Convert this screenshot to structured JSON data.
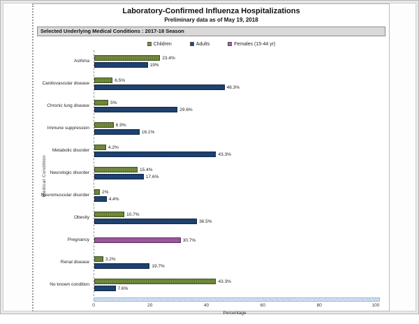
{
  "page": {
    "title": "Laboratory-Confirmed Influenza Hospitalizations",
    "subtitle": "Preliminary data as of May 19, 2018",
    "filter_bar": "Selected Underlying Medical Conditions : 2017-18 Season"
  },
  "colors": {
    "children": "#76923C",
    "adults": "#1F4779",
    "females": "#A75CA8",
    "scrollbar": "#BCCFE8"
  },
  "chart_data": {
    "type": "bar",
    "orientation": "horizontal",
    "title": "Laboratory-Confirmed Influenza Hospitalizations",
    "subtitle": "Preliminary data as of May 19, 2018",
    "xlabel": "Percentage",
    "ylabel": "Medical Condition",
    "xlim": [
      0,
      100
    ],
    "xticks": [
      0,
      20,
      40,
      60,
      80,
      100
    ],
    "grid": false,
    "legend_position": "top",
    "categories": [
      "Asthma",
      "Cardiovascular disease",
      "Chronic lung disease",
      "Immune suppression",
      "Metabolic disorder",
      "Neurologic disorder",
      "Neuromuscular disorder",
      "Obesity",
      "Pregnancy",
      "Renal disease",
      "No known condition"
    ],
    "series": [
      {
        "name": "Children",
        "color": "#76923C",
        "values": [
          23.4,
          6.5,
          5,
          6.9,
          4.2,
          15.4,
          2,
          10.7,
          null,
          3.2,
          43.3
        ],
        "labels": [
          "23.4%",
          "6.5%",
          "5%",
          "6.9%",
          "4.2%",
          "15.4%",
          "2%",
          "10.7%",
          "",
          "3.2%",
          "43.3%"
        ]
      },
      {
        "name": "Adults",
        "color": "#1F4779",
        "values": [
          19,
          46.3,
          29.6,
          16.1,
          43.3,
          17.6,
          4.4,
          36.5,
          null,
          19.7,
          7.6
        ],
        "labels": [
          "19%",
          "46.3%",
          "29.6%",
          "16.1%",
          "43.3%",
          "17.6%",
          "4.4%",
          "36.5%",
          "",
          "19.7%",
          "7.6%"
        ]
      },
      {
        "name": "Females (15-44 yr)",
        "color": "#A75CA8",
        "values": [
          null,
          null,
          null,
          null,
          null,
          null,
          null,
          null,
          30.7,
          null,
          null
        ],
        "labels": [
          "",
          "",
          "",
          "",
          "",
          "",
          "",
          "",
          "30.7%",
          "",
          ""
        ]
      }
    ]
  }
}
